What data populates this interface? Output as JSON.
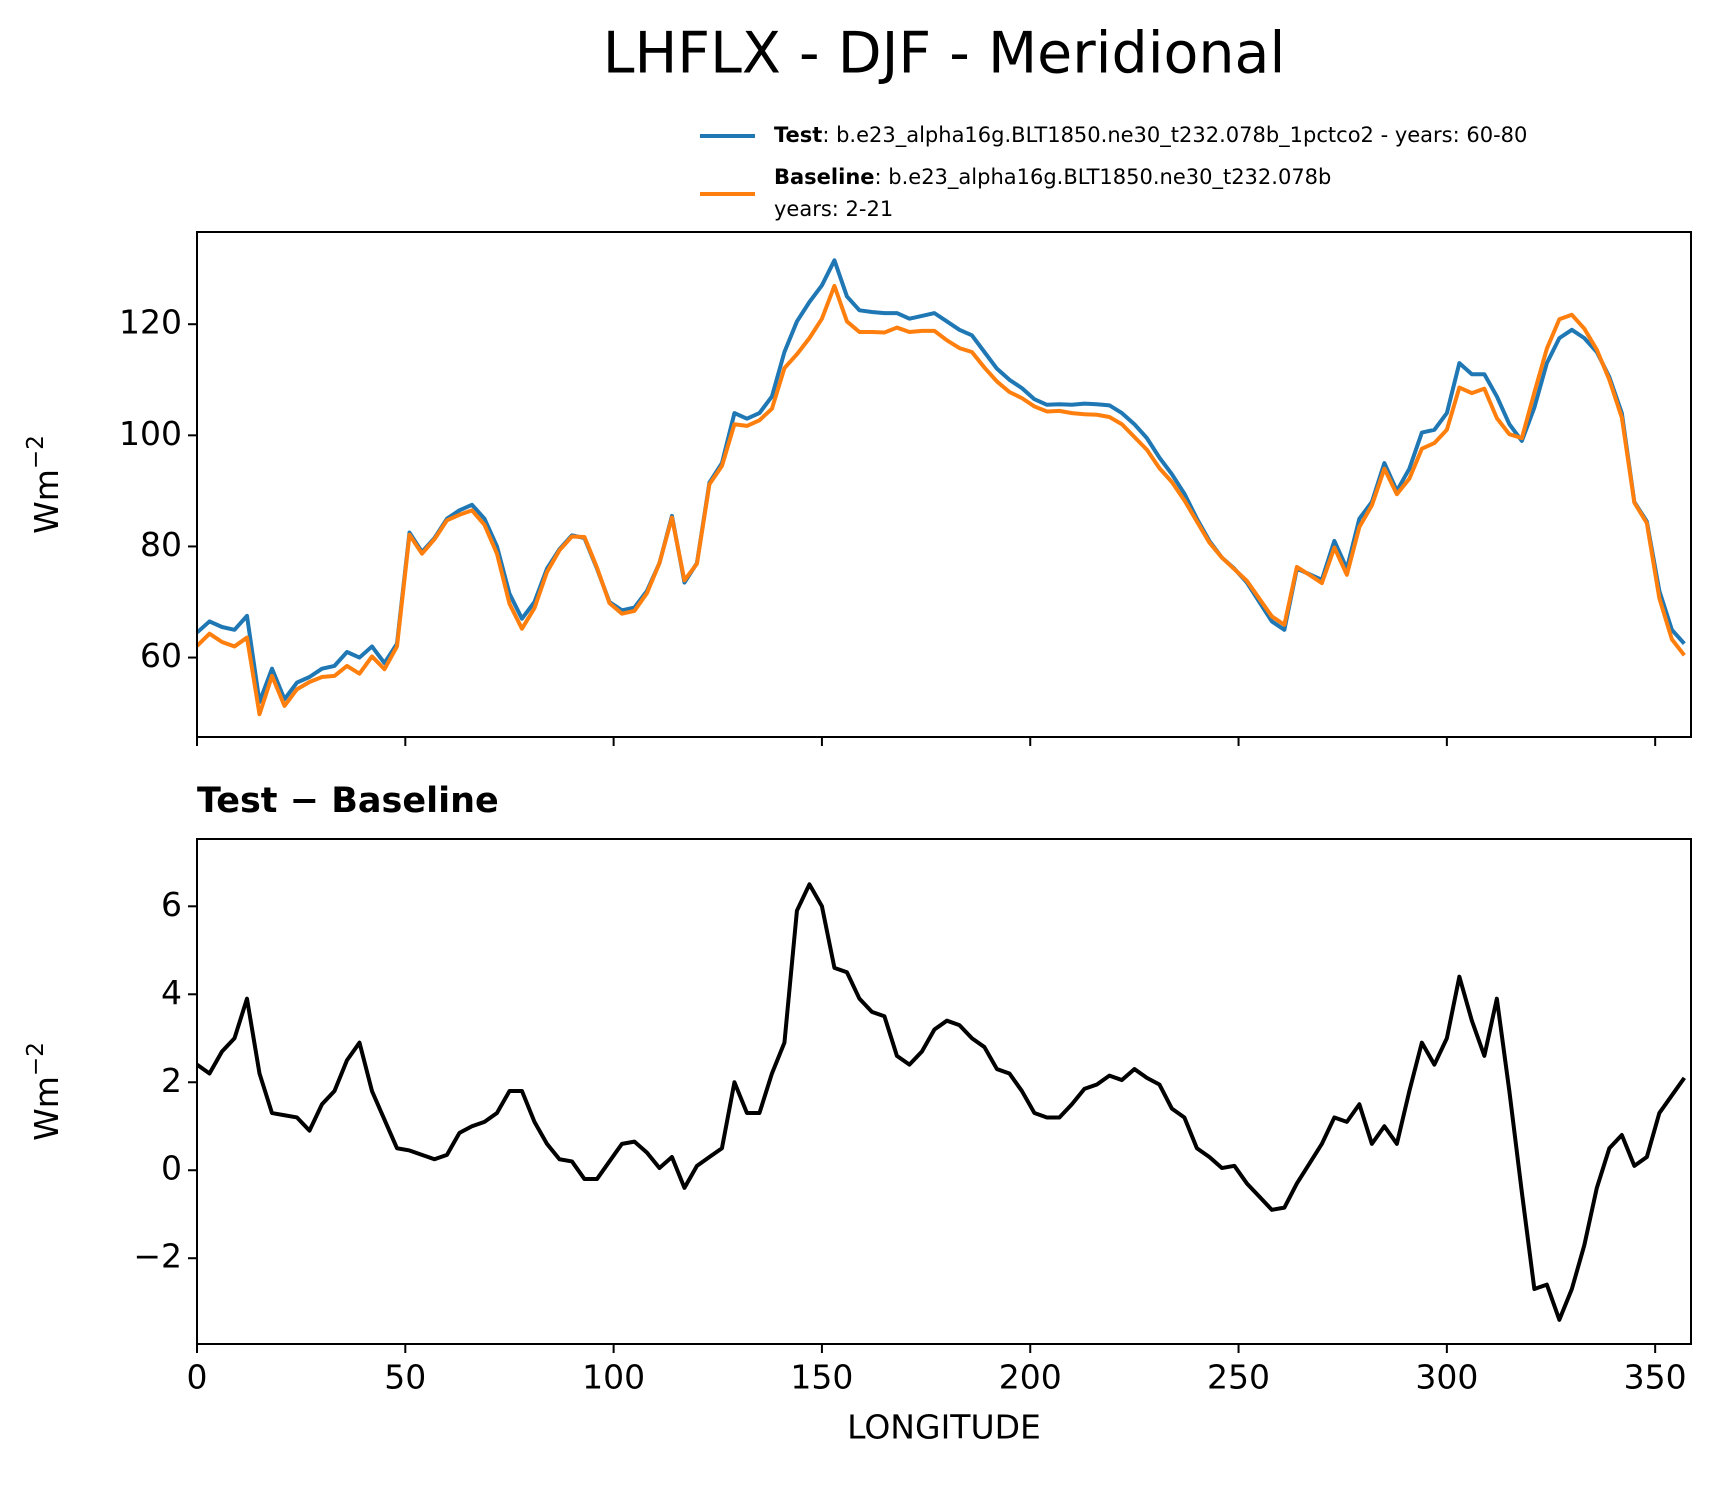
{
  "title": "LHFLX - DJF - Meridional",
  "chart_data": [
    {
      "type": "line",
      "x": [
        0,
        3,
        6,
        9,
        12,
        15,
        18,
        21,
        24,
        27,
        30,
        33,
        36,
        39,
        42,
        45,
        48,
        51,
        54,
        57,
        60,
        63,
        66,
        69,
        72,
        75,
        78,
        81,
        84,
        87,
        90,
        93,
        96,
        99,
        102,
        105,
        108,
        111,
        114,
        117,
        120,
        123,
        126,
        129,
        132,
        135,
        138,
        141,
        144,
        147,
        150,
        153,
        156,
        159,
        162,
        165,
        168,
        171,
        174,
        177,
        180,
        183,
        186,
        189,
        192,
        195,
        198,
        201,
        204,
        207,
        210,
        213,
        216,
        219,
        222,
        225,
        228,
        231,
        234,
        237,
        240,
        243,
        246,
        249,
        252,
        255,
        258,
        261,
        264,
        267,
        270,
        273,
        276,
        279,
        282,
        285,
        288,
        291,
        294,
        297,
        300,
        303,
        306,
        309,
        312,
        315,
        318,
        321,
        324,
        327,
        330,
        333,
        336,
        339,
        342,
        345,
        348,
        351,
        354,
        357
      ],
      "series": [
        {
          "name": "Test",
          "label": ": b.e23_alpha16g.BLT1850.ne30_t232.078b_1pctco2 - years: 60-80",
          "color": "#1f77b4",
          "values": [
            64.5,
            66.5,
            65.5,
            65,
            67.5,
            52,
            58,
            52.5,
            55.5,
            56.5,
            58,
            58.5,
            61,
            60,
            62,
            59,
            62.5,
            82.5,
            79,
            81.5,
            85,
            86.5,
            87.5,
            85,
            80,
            71.5,
            67,
            70,
            76,
            79.5,
            82,
            81.5,
            76,
            70,
            68.5,
            69,
            72,
            77,
            85.5,
            73.5,
            77,
            91.5,
            95,
            104,
            103,
            104,
            107,
            115,
            120.5,
            124,
            127,
            131.5,
            125,
            122.5,
            122.2,
            122,
            122,
            121,
            121.5,
            122,
            120.5,
            119,
            118,
            115,
            112,
            110,
            108.5,
            106.5,
            105.5,
            105.6,
            105.5,
            105.7,
            105.6,
            105.4,
            104,
            102,
            99.5,
            96,
            93,
            89.5,
            85,
            81,
            78,
            76,
            73.5,
            70,
            66.5,
            65,
            76,
            75,
            74,
            81,
            76,
            85,
            88,
            95,
            90,
            94,
            100.5,
            101,
            104,
            113,
            111,
            111,
            107,
            102,
            99,
            105,
            113,
            117.5,
            119,
            117.5,
            115,
            110.5,
            104,
            88,
            84.5,
            72,
            65,
            62.5
          ]
        },
        {
          "name": "Baseline",
          "label": ": b.e23_alpha16g.BLT1850.ne30_t232.078b",
          "label2": "years: 2-21",
          "color": "#ff7f0e",
          "values": [
            62.1,
            64.3,
            62.8,
            62,
            63.6,
            49.8,
            56.7,
            51.3,
            54.3,
            55.6,
            56.5,
            56.7,
            58.5,
            57.1,
            60.2,
            57.9,
            62,
            82.1,
            78.7,
            81.3,
            84.7,
            85.7,
            86.5,
            83.9,
            78.7,
            69.7,
            65.2,
            68.9,
            75.4,
            79.3,
            81.8,
            81.7,
            76.2,
            69.8,
            67.9,
            68.4,
            71.6,
            77,
            85.2,
            73.9,
            76.9,
            91.2,
            94.5,
            102,
            101.7,
            102.7,
            104.8,
            112.1,
            114.6,
            117.5,
            121,
            126.9,
            120.5,
            118.6,
            118.6,
            118.5,
            119.4,
            118.6,
            118.8,
            118.8,
            117.1,
            115.7,
            115,
            112.2,
            109.7,
            107.8,
            106.7,
            105.2,
            104.3,
            104.4,
            104,
            103.8,
            103.7,
            103.3,
            102,
            99.7,
            97.4,
            94.1,
            91.6,
            88.3,
            84.5,
            80.7,
            78,
            75.9,
            73.8,
            70.6,
            67.4,
            65.9,
            76.3,
            74.9,
            73.4,
            79.8,
            74.9,
            83.5,
            87.4,
            94,
            89.4,
            92.2,
            97.6,
            98.6,
            101,
            108.6,
            107.6,
            108.4,
            103.1,
            100.2,
            99.5,
            107.7,
            115.6,
            120.9,
            121.7,
            119.2,
            115.4,
            110,
            103.2,
            87.9,
            84.2,
            70.7,
            63.3,
            60.4
          ]
        }
      ],
      "ylabel": {
        "base": "Wm",
        "sup": "−2"
      },
      "xlim": [
        0,
        358.6
      ],
      "xticks": [
        0,
        50,
        100,
        150,
        200,
        250,
        300,
        350
      ],
      "xticklabels": false,
      "ylim": [
        45.7,
        136.6
      ],
      "yticks": [
        60,
        80,
        100,
        120
      ]
    },
    {
      "type": "line",
      "title": "Test − Baseline",
      "x": [
        0,
        3,
        6,
        9,
        12,
        15,
        18,
        21,
        24,
        27,
        30,
        33,
        36,
        39,
        42,
        45,
        48,
        51,
        54,
        57,
        60,
        63,
        66,
        69,
        72,
        75,
        78,
        81,
        84,
        87,
        90,
        93,
        96,
        99,
        102,
        105,
        108,
        111,
        114,
        117,
        120,
        123,
        126,
        129,
        132,
        135,
        138,
        141,
        144,
        147,
        150,
        153,
        156,
        159,
        162,
        165,
        168,
        171,
        174,
        177,
        180,
        183,
        186,
        189,
        192,
        195,
        198,
        201,
        204,
        207,
        210,
        213,
        216,
        219,
        222,
        225,
        228,
        231,
        234,
        237,
        240,
        243,
        246,
        249,
        252,
        255,
        258,
        261,
        264,
        267,
        270,
        273,
        276,
        279,
        282,
        285,
        288,
        291,
        294,
        297,
        300,
        303,
        306,
        309,
        312,
        315,
        318,
        321,
        324,
        327,
        330,
        333,
        336,
        339,
        342,
        345,
        348,
        351,
        354,
        357
      ],
      "series": [
        {
          "color": "#000000",
          "values": [
            2.4,
            2.2,
            2.7,
            3,
            3.9,
            2.2,
            1.3,
            1.25,
            1.2,
            0.9,
            1.5,
            1.8,
            2.5,
            2.9,
            1.8,
            1.15,
            0.5,
            0.45,
            0.35,
            0.25,
            0.35,
            0.85,
            1,
            1.1,
            1.3,
            1.8,
            1.8,
            1.1,
            0.6,
            0.25,
            0.2,
            -0.2,
            -0.2,
            0.2,
            0.6,
            0.65,
            0.4,
            0.05,
            0.3,
            -0.4,
            0.1,
            0.3,
            0.5,
            2,
            1.3,
            1.3,
            2.2,
            2.9,
            5.9,
            6.5,
            6,
            4.6,
            4.5,
            3.9,
            3.6,
            3.5,
            2.6,
            2.4,
            2.7,
            3.2,
            3.4,
            3.3,
            3,
            2.8,
            2.3,
            2.2,
            1.8,
            1.3,
            1.2,
            1.2,
            1.5,
            1.85,
            1.95,
            2.15,
            2.05,
            2.3,
            2.1,
            1.95,
            1.4,
            1.2,
            0.5,
            0.3,
            0.05,
            0.1,
            -0.3,
            -0.6,
            -0.9,
            -0.85,
            -0.3,
            0.15,
            0.6,
            1.2,
            1.1,
            1.5,
            0.6,
            1,
            0.6,
            1.8,
            2.9,
            2.4,
            3,
            4.4,
            3.4,
            2.6,
            3.9,
            1.8,
            -0.5,
            -2.7,
            -2.6,
            -3.4,
            -2.7,
            -1.7,
            -0.4,
            0.5,
            0.8,
            0.1,
            0.3,
            1.3,
            1.7,
            2.1
          ]
        }
      ],
      "ylabel": {
        "base": "Wm",
        "sup": "−2"
      },
      "xlabel": "LONGITUDE",
      "xlim": [
        0,
        358.6
      ],
      "xticks": [
        0,
        50,
        100,
        150,
        200,
        250,
        300,
        350
      ],
      "xticklabels": true,
      "ylim": [
        -3.95,
        7.53
      ],
      "yticks": [
        {
          "value": -2,
          "label": "−2"
        },
        0,
        2,
        4,
        6
      ]
    }
  ]
}
